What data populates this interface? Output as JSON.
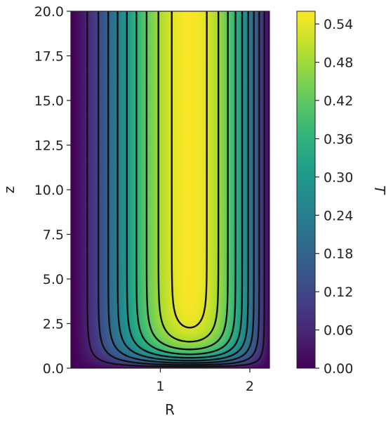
{
  "chart_data": {
    "type": "heatmap",
    "subtype": "filled-contour with contour lines",
    "xlabel": "R",
    "ylabel": "z",
    "xlim": [
      0.0,
      2.22
    ],
    "ylim": [
      0.0,
      20.0
    ],
    "x_ticks": [
      "1",
      "2"
    ],
    "x_tick_values": [
      1,
      2
    ],
    "y_ticks": [
      "0.0",
      "2.5",
      "5.0",
      "7.5",
      "10.0",
      "12.5",
      "15.0",
      "17.5",
      "20.0"
    ],
    "y_tick_values": [
      0.0,
      2.5,
      5.0,
      7.5,
      10.0,
      12.5,
      15.0,
      17.5,
      20.0
    ],
    "colorbar": {
      "label": "T",
      "range": [
        0.0,
        0.56
      ],
      "ticks": [
        "0.00",
        "0.06",
        "0.12",
        "0.18",
        "0.24",
        "0.30",
        "0.36",
        "0.42",
        "0.48",
        "0.54"
      ],
      "tick_values": [
        0.0,
        0.06,
        0.12,
        0.18,
        0.24,
        0.3,
        0.36,
        0.42,
        0.48,
        0.54
      ],
      "colormap": "viridis"
    },
    "field": {
      "description_values": {
        "peak_R": 1.38,
        "T_max": 0.555,
        "left_wall_R": 0.0,
        "right_wall_R": 2.22
      }
    },
    "contour_levels": [
      0.06,
      0.12,
      0.18,
      0.24,
      0.3,
      0.36,
      0.42,
      0.48,
      0.53
    ],
    "line_color": "#111111"
  }
}
